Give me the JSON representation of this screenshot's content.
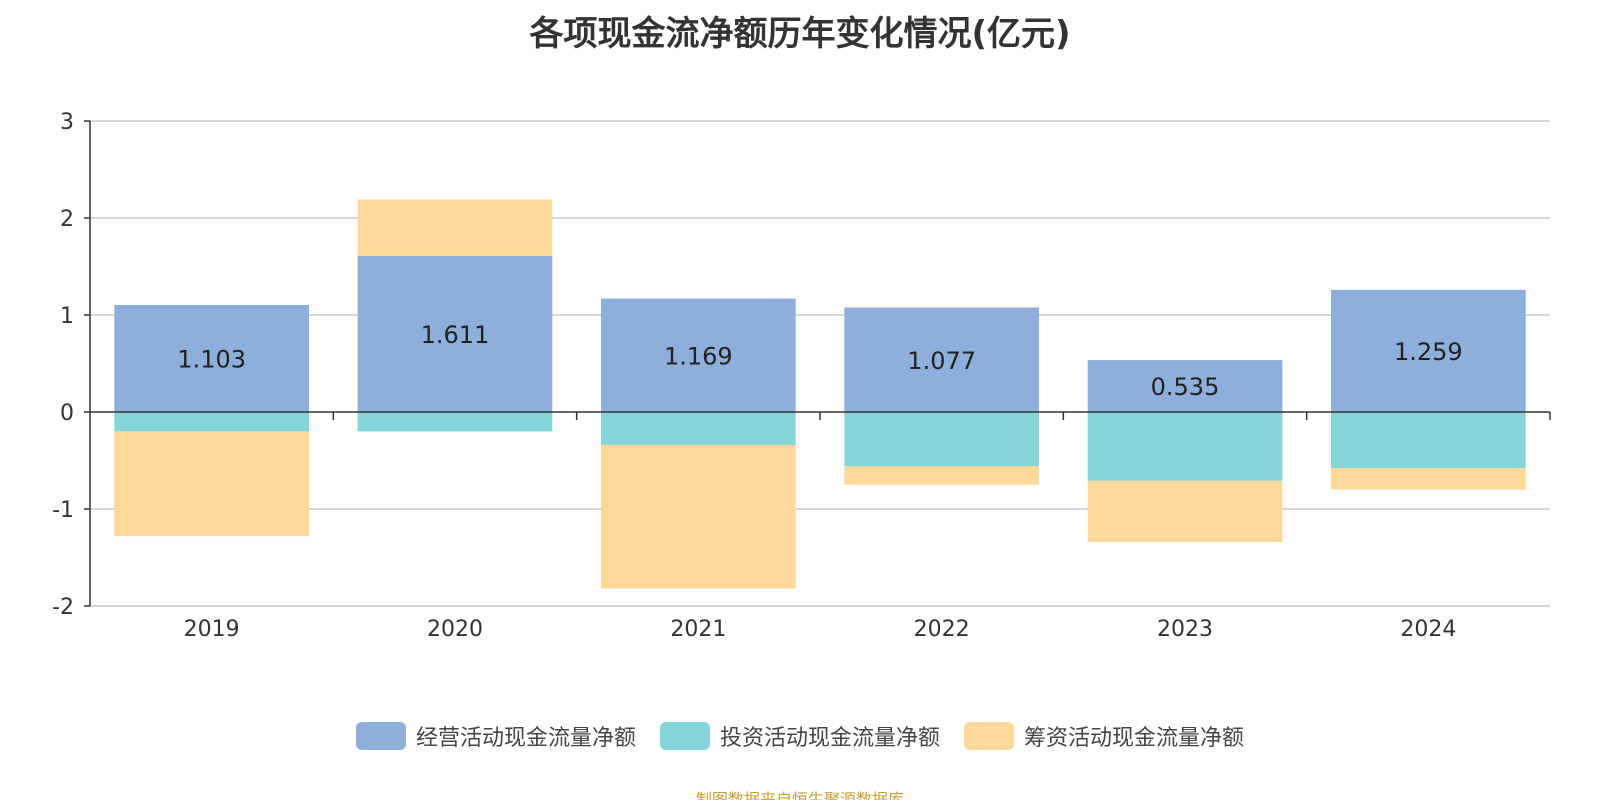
{
  "title": "各项现金流净额历年变化情况(亿元)",
  "source_note": "制图数据来自恒生聚源数据库",
  "colors": {
    "operating": "#8eaedb",
    "investing": "#86d5d8",
    "financing": "#fdd898",
    "grid": "#cccccc",
    "axis": "#333333"
  },
  "chart_data": {
    "type": "bar",
    "stacked": true,
    "title": "各项现金流净额历年变化情况(亿元)",
    "categories": [
      "2019",
      "2020",
      "2021",
      "2022",
      "2023",
      "2024"
    ],
    "series": [
      {
        "name": "经营活动现金流量净额",
        "color_key": "operating",
        "values": [
          1.103,
          1.611,
          1.169,
          1.077,
          0.535,
          1.259
        ],
        "show_labels": true
      },
      {
        "name": "投资活动现金流量净额",
        "color_key": "investing",
        "values": [
          -0.2,
          -0.2,
          -0.34,
          -0.56,
          -0.71,
          -0.58
        ],
        "show_labels": false
      },
      {
        "name": "筹资活动现金流量净额",
        "color_key": "financing",
        "values": [
          -1.08,
          0.58,
          -1.48,
          -0.19,
          -0.63,
          -0.22
        ],
        "show_labels": false
      }
    ],
    "ylim": [
      -2,
      3
    ],
    "yticks": [
      3,
      2,
      1,
      0,
      -1,
      -2
    ],
    "grid": true,
    "legend_position": "bottom"
  }
}
